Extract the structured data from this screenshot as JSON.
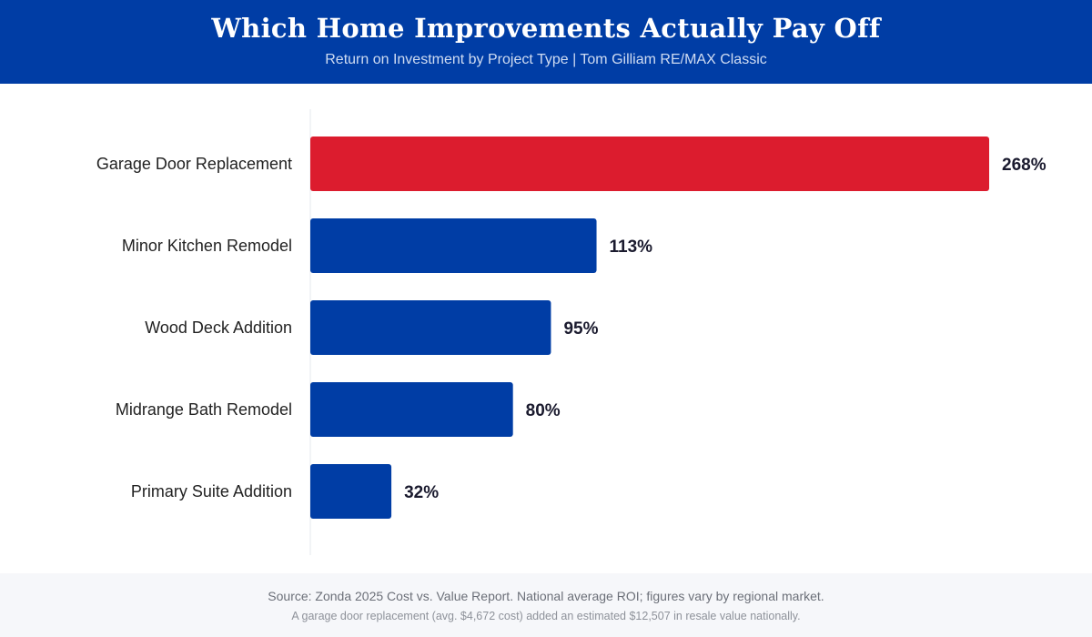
{
  "header": {
    "title": "Which Home Improvements Actually Pay Off",
    "subtitle": "Return on Investment by Project Type | Tom Gilliam RE/MAX Classic"
  },
  "colors": {
    "header_bg": "#003DA5",
    "bar_primary": "#003DA5",
    "bar_highlight": "#DC1C2E",
    "value_text": "#1a1a2e",
    "category_text": "#222222"
  },
  "chart_data": {
    "type": "bar",
    "orientation": "horizontal",
    "title": "Which Home Improvements Actually Pay Off",
    "subtitle": "Return on Investment by Project Type | Tom Gilliam RE/MAX Classic",
    "xlabel": "",
    "ylabel": "",
    "categories": [
      "Garage Door Replacement",
      "Minor Kitchen Remodel",
      "Wood Deck Addition",
      "Midrange Bath Remodel",
      "Primary Suite Addition"
    ],
    "values": [
      268,
      113,
      95,
      80,
      32
    ],
    "value_labels": [
      "268%",
      "113%",
      "95%",
      "80%",
      "32%"
    ],
    "highlight_index": 0,
    "xlim": [
      0,
      268
    ],
    "grid": false,
    "legend": "none"
  },
  "footer": {
    "source": "Source: Zonda 2025 Cost vs. Value Report. National average ROI; figures vary by regional market.",
    "note": "A garage door replacement (avg. $4,672 cost) added an estimated $12,507 in resale value nationally."
  }
}
